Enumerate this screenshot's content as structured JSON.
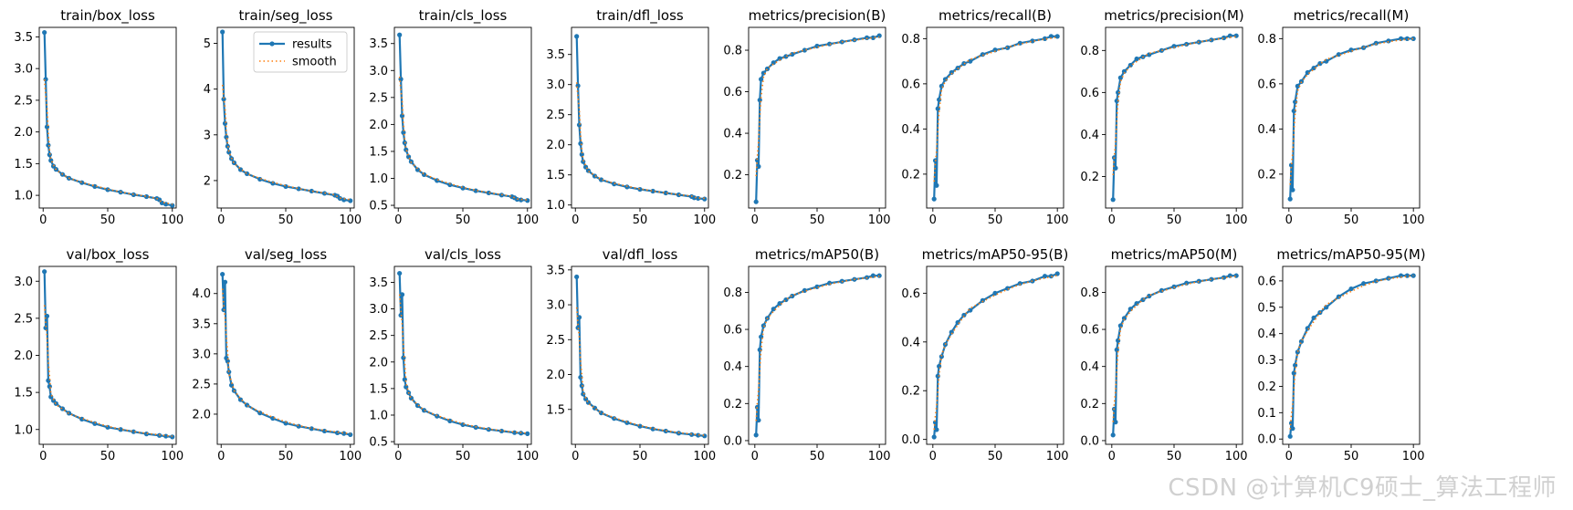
{
  "watermark": "CSDN @计算机C9硕士_算法工程师",
  "legend": {
    "results": "results",
    "smooth": "smooth",
    "placement": "top-right",
    "panel": 1
  },
  "colors": {
    "results": "#1f77b4",
    "smooth": "#ff7f0e"
  },
  "chart_data": [
    {
      "type": "line",
      "title": "train/box_loss",
      "xlim": [
        -3,
        103
      ],
      "ylim": [
        0.8,
        3.65
      ],
      "xticks": [
        0,
        50,
        100
      ],
      "yticks": [
        1.0,
        1.5,
        2.0,
        2.5,
        3.0,
        3.5
      ],
      "x": [
        1,
        2,
        3,
        4,
        5,
        6,
        8,
        10,
        15,
        20,
        30,
        40,
        50,
        60,
        70,
        80,
        88,
        90,
        92,
        95,
        100
      ],
      "y": [
        3.57,
        2.83,
        2.08,
        1.79,
        1.64,
        1.55,
        1.46,
        1.41,
        1.33,
        1.27,
        1.2,
        1.14,
        1.09,
        1.05,
        1.01,
        0.98,
        0.95,
        0.93,
        0.88,
        0.86,
        0.84
      ]
    },
    {
      "type": "line",
      "title": "train/seg_loss",
      "xlim": [
        -3,
        103
      ],
      "ylim": [
        1.4,
        5.35
      ],
      "xticks": [
        0,
        50,
        100
      ],
      "yticks": [
        2,
        3,
        4,
        5
      ],
      "x": [
        1,
        2,
        3,
        4,
        5,
        6,
        8,
        10,
        15,
        20,
        30,
        40,
        50,
        60,
        70,
        80,
        88,
        90,
        92,
        95,
        100
      ],
      "y": [
        5.25,
        3.78,
        3.25,
        2.95,
        2.75,
        2.62,
        2.48,
        2.39,
        2.24,
        2.15,
        2.03,
        1.94,
        1.87,
        1.82,
        1.77,
        1.72,
        1.68,
        1.66,
        1.61,
        1.58,
        1.56
      ]
    },
    {
      "type": "line",
      "title": "train/cls_loss",
      "xlim": [
        -3,
        103
      ],
      "ylim": [
        0.45,
        3.8
      ],
      "xticks": [
        0,
        50,
        100
      ],
      "yticks": [
        0.5,
        1.0,
        1.5,
        2.0,
        2.5,
        3.0,
        3.5
      ],
      "x": [
        1,
        2,
        3,
        4,
        5,
        6,
        8,
        10,
        15,
        20,
        30,
        40,
        50,
        60,
        70,
        80,
        88,
        90,
        92,
        95,
        100
      ],
      "y": [
        3.66,
        2.84,
        2.16,
        1.85,
        1.66,
        1.53,
        1.4,
        1.31,
        1.16,
        1.07,
        0.96,
        0.88,
        0.82,
        0.77,
        0.73,
        0.69,
        0.66,
        0.64,
        0.61,
        0.6,
        0.59
      ]
    },
    {
      "type": "line",
      "title": "train/dfl_loss",
      "xlim": [
        -3,
        103
      ],
      "ylim": [
        0.95,
        3.95
      ],
      "xticks": [
        0,
        50,
        100
      ],
      "yticks": [
        1.0,
        1.5,
        2.0,
        2.5,
        3.0,
        3.5
      ],
      "x": [
        1,
        2,
        3,
        4,
        5,
        6,
        8,
        10,
        15,
        20,
        30,
        40,
        50,
        60,
        70,
        80,
        90,
        92,
        95,
        100
      ],
      "y": [
        3.8,
        2.98,
        2.33,
        2.02,
        1.84,
        1.72,
        1.63,
        1.57,
        1.48,
        1.42,
        1.35,
        1.3,
        1.26,
        1.23,
        1.2,
        1.17,
        1.14,
        1.12,
        1.11,
        1.1
      ]
    },
    {
      "type": "line",
      "title": "metrics/precision(B)",
      "xlim": [
        -5,
        105
      ],
      "ylim": [
        0.04,
        0.91
      ],
      "xticks": [
        0,
        50,
        100
      ],
      "yticks": [
        0.2,
        0.4,
        0.6,
        0.8
      ],
      "x": [
        1,
        2,
        3,
        4,
        5,
        7,
        10,
        15,
        20,
        25,
        30,
        40,
        50,
        60,
        70,
        80,
        90,
        95,
        100
      ],
      "y": [
        0.07,
        0.27,
        0.24,
        0.56,
        0.66,
        0.69,
        0.71,
        0.74,
        0.76,
        0.77,
        0.78,
        0.8,
        0.82,
        0.83,
        0.84,
        0.85,
        0.86,
        0.86,
        0.87
      ]
    },
    {
      "type": "line",
      "title": "metrics/recall(B)",
      "xlim": [
        -5,
        105
      ],
      "ylim": [
        0.05,
        0.85
      ],
      "xticks": [
        0,
        50,
        100
      ],
      "yticks": [
        0.2,
        0.4,
        0.6,
        0.8
      ],
      "x": [
        1,
        2,
        3,
        4,
        5,
        7,
        10,
        15,
        20,
        25,
        30,
        40,
        50,
        60,
        70,
        80,
        90,
        95,
        100
      ],
      "y": [
        0.09,
        0.26,
        0.15,
        0.49,
        0.53,
        0.59,
        0.62,
        0.65,
        0.67,
        0.69,
        0.7,
        0.73,
        0.75,
        0.76,
        0.78,
        0.79,
        0.8,
        0.81,
        0.81
      ]
    },
    {
      "type": "line",
      "title": "metrics/precision(M)",
      "xlim": [
        -5,
        105
      ],
      "ylim": [
        0.05,
        0.91
      ],
      "xticks": [
        0,
        50,
        100
      ],
      "yticks": [
        0.2,
        0.4,
        0.6,
        0.8
      ],
      "x": [
        1,
        2,
        3,
        4,
        5,
        7,
        10,
        15,
        20,
        25,
        30,
        40,
        50,
        60,
        70,
        80,
        90,
        95,
        100
      ],
      "y": [
        0.09,
        0.29,
        0.24,
        0.56,
        0.6,
        0.67,
        0.7,
        0.73,
        0.76,
        0.77,
        0.78,
        0.8,
        0.82,
        0.83,
        0.84,
        0.85,
        0.86,
        0.87,
        0.87
      ]
    },
    {
      "type": "line",
      "title": "metrics/recall(M)",
      "xlim": [
        -5,
        105
      ],
      "ylim": [
        0.05,
        0.85
      ],
      "xticks": [
        0,
        50,
        100
      ],
      "yticks": [
        0.2,
        0.4,
        0.6,
        0.8
      ],
      "x": [
        1,
        2,
        3,
        4,
        5,
        7,
        10,
        15,
        20,
        25,
        30,
        40,
        50,
        60,
        70,
        80,
        90,
        95,
        100
      ],
      "y": [
        0.09,
        0.24,
        0.13,
        0.48,
        0.52,
        0.59,
        0.61,
        0.65,
        0.67,
        0.69,
        0.7,
        0.73,
        0.75,
        0.76,
        0.78,
        0.79,
        0.8,
        0.8,
        0.8
      ]
    },
    {
      "type": "line",
      "title": "val/box_loss",
      "xlim": [
        -3,
        103
      ],
      "ylim": [
        0.8,
        3.2
      ],
      "xticks": [
        0,
        50,
        100
      ],
      "yticks": [
        1.0,
        1.5,
        2.0,
        2.5,
        3.0
      ],
      "x": [
        1,
        2,
        3,
        4,
        5,
        6,
        8,
        10,
        15,
        20,
        30,
        40,
        50,
        60,
        70,
        80,
        90,
        95,
        100
      ],
      "y": [
        3.13,
        2.37,
        2.53,
        1.66,
        1.58,
        1.44,
        1.39,
        1.35,
        1.28,
        1.22,
        1.14,
        1.08,
        1.03,
        1.0,
        0.97,
        0.94,
        0.92,
        0.91,
        0.9
      ]
    },
    {
      "type": "line",
      "title": "val/seg_loss",
      "xlim": [
        -3,
        103
      ],
      "ylim": [
        1.5,
        4.45
      ],
      "xticks": [
        0,
        50,
        100
      ],
      "yticks": [
        2.0,
        2.5,
        3.0,
        3.5,
        4.0
      ],
      "x": [
        1,
        2,
        3,
        4,
        5,
        6,
        8,
        10,
        15,
        20,
        30,
        40,
        50,
        60,
        70,
        80,
        90,
        95,
        100
      ],
      "y": [
        4.32,
        3.73,
        4.19,
        2.93,
        2.88,
        2.7,
        2.48,
        2.39,
        2.24,
        2.15,
        2.02,
        1.93,
        1.85,
        1.8,
        1.76,
        1.72,
        1.69,
        1.68,
        1.66
      ]
    },
    {
      "type": "line",
      "title": "val/cls_loss",
      "xlim": [
        -3,
        103
      ],
      "ylim": [
        0.45,
        3.8
      ],
      "xticks": [
        0,
        50,
        100
      ],
      "yticks": [
        0.5,
        1.0,
        1.5,
        2.0,
        2.5,
        3.0,
        3.5
      ],
      "x": [
        1,
        2,
        3,
        4,
        5,
        6,
        8,
        10,
        15,
        20,
        30,
        40,
        50,
        60,
        70,
        80,
        90,
        95,
        100
      ],
      "y": [
        3.67,
        2.88,
        3.27,
        2.08,
        1.67,
        1.53,
        1.42,
        1.32,
        1.18,
        1.09,
        0.98,
        0.89,
        0.82,
        0.77,
        0.73,
        0.7,
        0.67,
        0.66,
        0.65
      ]
    },
    {
      "type": "line",
      "title": "val/dfl_loss",
      "xlim": [
        -3,
        103
      ],
      "ylim": [
        1.0,
        3.55
      ],
      "xticks": [
        0,
        50,
        100
      ],
      "yticks": [
        1.5,
        2.0,
        2.5,
        3.0,
        3.5
      ],
      "x": [
        1,
        2,
        3,
        4,
        5,
        6,
        8,
        10,
        15,
        20,
        30,
        40,
        50,
        60,
        70,
        80,
        90,
        95,
        100
      ],
      "y": [
        3.4,
        2.67,
        2.82,
        1.96,
        1.84,
        1.72,
        1.65,
        1.6,
        1.52,
        1.45,
        1.37,
        1.31,
        1.26,
        1.22,
        1.19,
        1.16,
        1.14,
        1.13,
        1.12
      ]
    },
    {
      "type": "line",
      "title": "metrics/mAP50(B)",
      "xlim": [
        -5,
        105
      ],
      "ylim": [
        -0.02,
        0.94
      ],
      "xticks": [
        0,
        50,
        100
      ],
      "yticks": [
        0.0,
        0.2,
        0.4,
        0.6,
        0.8
      ],
      "x": [
        1,
        2,
        3,
        4,
        5,
        7,
        10,
        15,
        20,
        25,
        30,
        40,
        50,
        60,
        70,
        80,
        90,
        95,
        100
      ],
      "y": [
        0.03,
        0.18,
        0.11,
        0.49,
        0.56,
        0.62,
        0.66,
        0.71,
        0.74,
        0.76,
        0.78,
        0.81,
        0.83,
        0.85,
        0.86,
        0.87,
        0.88,
        0.89,
        0.89
      ]
    },
    {
      "type": "line",
      "title": "metrics/mAP50-95(B)",
      "xlim": [
        -5,
        105
      ],
      "ylim": [
        -0.02,
        0.71
      ],
      "xticks": [
        0,
        50,
        100
      ],
      "yticks": [
        0.0,
        0.2,
        0.4,
        0.6
      ],
      "x": [
        1,
        2,
        3,
        4,
        5,
        7,
        10,
        15,
        20,
        25,
        30,
        40,
        50,
        60,
        70,
        80,
        90,
        95,
        100
      ],
      "y": [
        0.01,
        0.07,
        0.04,
        0.26,
        0.3,
        0.34,
        0.39,
        0.44,
        0.48,
        0.51,
        0.53,
        0.57,
        0.6,
        0.62,
        0.64,
        0.65,
        0.67,
        0.67,
        0.68
      ]
    },
    {
      "type": "line",
      "title": "metrics/mAP50(M)",
      "xlim": [
        -5,
        105
      ],
      "ylim": [
        -0.02,
        0.94
      ],
      "xticks": [
        0,
        50,
        100
      ],
      "yticks": [
        0.0,
        0.2,
        0.4,
        0.6,
        0.8
      ],
      "x": [
        1,
        2,
        3,
        4,
        5,
        7,
        10,
        15,
        20,
        25,
        30,
        40,
        50,
        60,
        70,
        80,
        90,
        95,
        100
      ],
      "y": [
        0.03,
        0.17,
        0.1,
        0.49,
        0.54,
        0.62,
        0.66,
        0.71,
        0.74,
        0.76,
        0.78,
        0.81,
        0.83,
        0.85,
        0.86,
        0.87,
        0.88,
        0.89,
        0.89
      ]
    },
    {
      "type": "line",
      "title": "metrics/mAP50-95(M)",
      "xlim": [
        -5,
        105
      ],
      "ylim": [
        -0.02,
        0.655
      ],
      "xticks": [
        0,
        50,
        100
      ],
      "yticks": [
        0.0,
        0.1,
        0.2,
        0.3,
        0.4,
        0.5,
        0.6
      ],
      "x": [
        1,
        2,
        3,
        4,
        5,
        7,
        10,
        15,
        20,
        25,
        30,
        40,
        50,
        60,
        70,
        80,
        90,
        95,
        100
      ],
      "y": [
        0.01,
        0.06,
        0.04,
        0.25,
        0.28,
        0.33,
        0.37,
        0.42,
        0.46,
        0.48,
        0.5,
        0.54,
        0.57,
        0.59,
        0.6,
        0.61,
        0.62,
        0.62,
        0.62
      ]
    }
  ]
}
